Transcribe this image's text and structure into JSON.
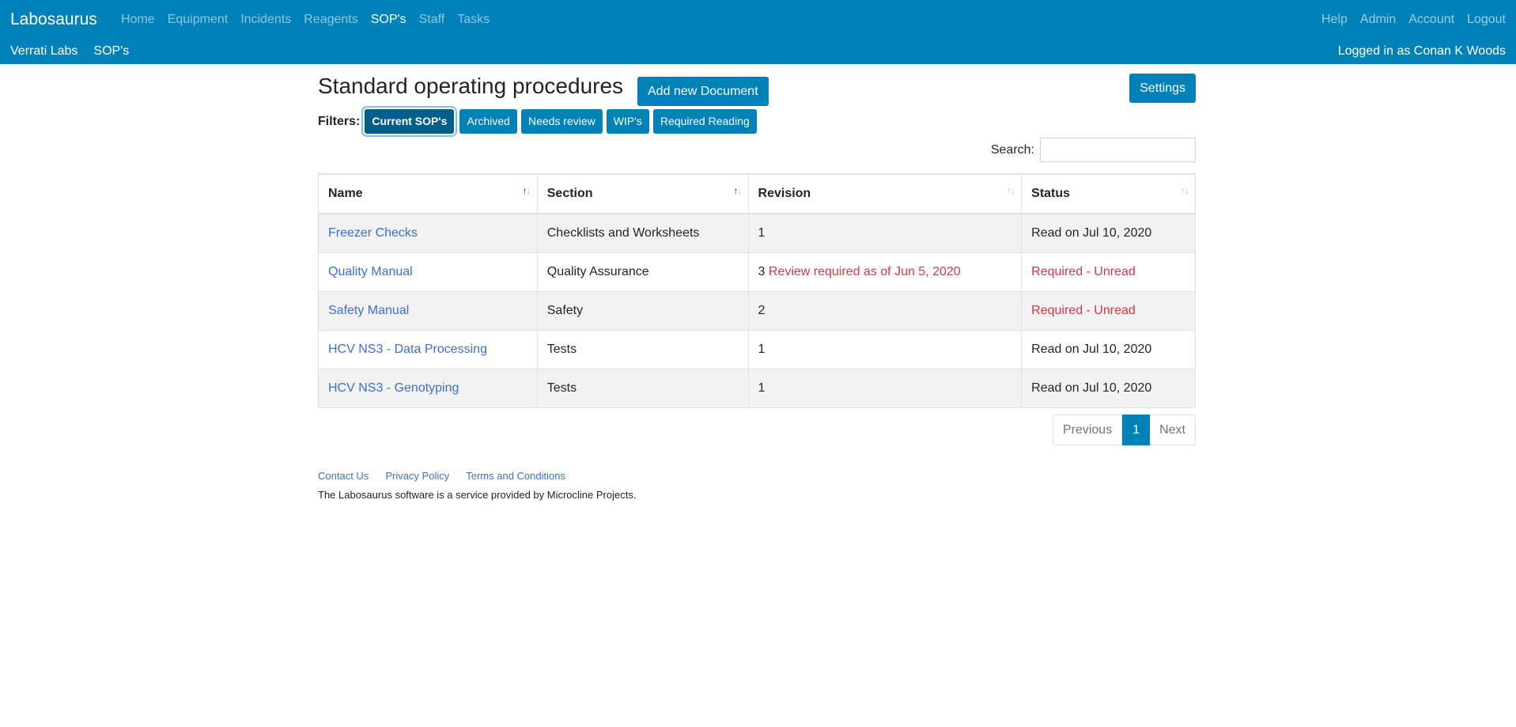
{
  "navbar": {
    "brand": "Labosaurus",
    "main_links": [
      {
        "label": "Home",
        "active": false
      },
      {
        "label": "Equipment",
        "active": false
      },
      {
        "label": "Incidents",
        "active": false
      },
      {
        "label": "Reagents",
        "active": false
      },
      {
        "label": "SOP's",
        "active": true
      },
      {
        "label": "Staff",
        "active": false
      },
      {
        "label": "Tasks",
        "active": false
      }
    ],
    "right_links": [
      "Help",
      "Admin",
      "Account",
      "Logout"
    ],
    "sub_links": [
      "Verrati Labs",
      "SOP's"
    ],
    "logged_in_text": "Logged in as Conan K Woods",
    "color": "#0081b8"
  },
  "page": {
    "title": "Standard operating procedures",
    "add_button": "Add new Document",
    "settings_button": "Settings",
    "filters_label": "Filters:",
    "filters": [
      "Current SOP's",
      "Archived",
      "Needs review",
      "WIP's",
      "Required Reading"
    ],
    "active_filter": "Current SOP's",
    "search_label": "Search:",
    "search_value": ""
  },
  "table": {
    "columns": [
      "Name",
      "Section",
      "Revision",
      "Status"
    ],
    "rows": [
      {
        "name": "Freezer Checks",
        "section": "Checklists and Worksheets",
        "revision": "1",
        "revision_note": "",
        "status": "Read on Jul 10, 2020",
        "status_alert": false
      },
      {
        "name": "Quality Manual",
        "section": "Quality Assurance",
        "revision": "3",
        "revision_note": "Review required as of Jun 5, 2020",
        "status": "Required - Unread",
        "status_alert": true
      },
      {
        "name": "Safety Manual",
        "section": "Safety",
        "revision": "2",
        "revision_note": "",
        "status": "Required - Unread",
        "status_alert": true
      },
      {
        "name": "HCV NS3 - Data Processing",
        "section": "Tests",
        "revision": "1",
        "revision_note": "",
        "status": "Read on Jul 10, 2020",
        "status_alert": false
      },
      {
        "name": "HCV NS3 - Genotyping",
        "section": "Tests",
        "revision": "1",
        "revision_note": "",
        "status": "Read on Jul 10, 2020",
        "status_alert": false
      }
    ]
  },
  "pagination": {
    "previous": "Previous",
    "current": "1",
    "next": "Next"
  },
  "footer": {
    "links": [
      "Contact Us",
      "Privacy Policy",
      "Terms and Conditions"
    ],
    "text": "The Labosaurus software is a service provided by Microcline Projects."
  }
}
